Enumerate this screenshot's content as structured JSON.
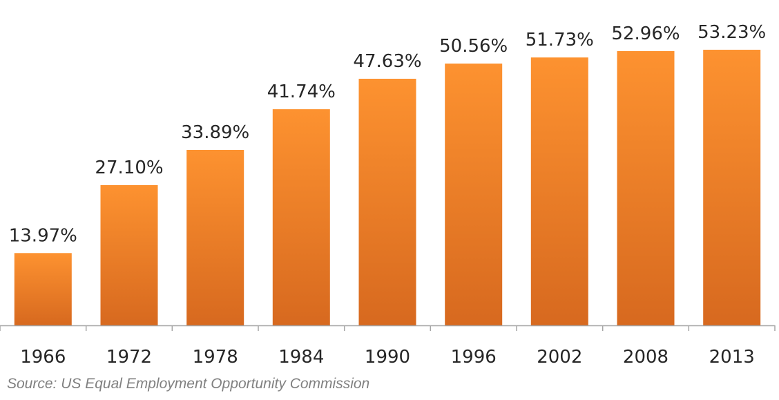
{
  "chart_data": {
    "type": "bar",
    "categories": [
      "1966",
      "1972",
      "1978",
      "1984",
      "1990",
      "1996",
      "2002",
      "2008",
      "2013"
    ],
    "values": [
      13.97,
      27.1,
      33.89,
      41.74,
      47.63,
      50.56,
      51.73,
      52.96,
      53.23
    ],
    "value_labels": [
      "13.97%",
      "27.10%",
      "33.89%",
      "41.74%",
      "47.63%",
      "50.56%",
      "51.73%",
      "52.96%",
      "53.23%"
    ],
    "title": "",
    "xlabel": "",
    "ylabel": "",
    "ylim": [
      0,
      53.23
    ],
    "grid": false,
    "legend": "none",
    "bar_color_top": "#fd9230",
    "bar_color_bottom": "#d7691f",
    "axis_color": "#a6a6a6",
    "text_color": "#262626"
  },
  "source_note": "Source: US Equal Employment Opportunity Commission"
}
